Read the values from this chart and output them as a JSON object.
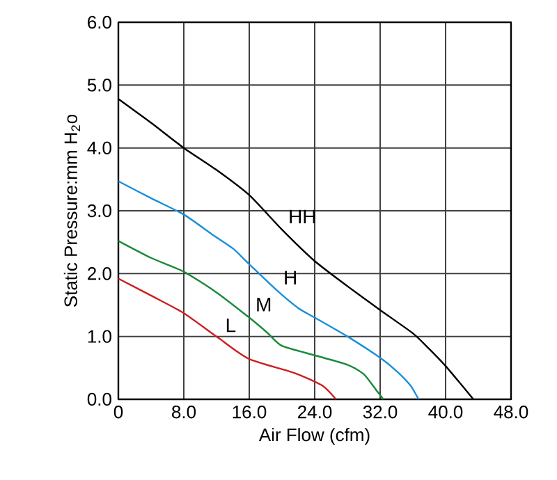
{
  "chart_data": {
    "type": "line",
    "xlabel": "Air Flow (cfm)",
    "ylabel": "Static Pressure:mm H$_{2}$o",
    "xlim": [
      0,
      48
    ],
    "ylim": [
      0,
      6
    ],
    "xticks": [
      {
        "value": 0,
        "label": "0"
      },
      {
        "value": 8,
        "label": "8.0"
      },
      {
        "value": 16,
        "label": "16.0"
      },
      {
        "value": 24,
        "label": "24.0"
      },
      {
        "value": 32,
        "label": "32.0"
      },
      {
        "value": 40,
        "label": "40.0"
      },
      {
        "value": 48,
        "label": "48.0"
      }
    ],
    "yticks": [
      {
        "value": 0,
        "label": "0.0"
      },
      {
        "value": 1,
        "label": "1.0"
      },
      {
        "value": 2,
        "label": "2.0"
      },
      {
        "value": 3,
        "label": "3.0"
      },
      {
        "value": 4,
        "label": "4.0"
      },
      {
        "value": 5,
        "label": "5.0"
      },
      {
        "value": 6,
        "label": "6.0"
      }
    ],
    "grid": true,
    "legend": false,
    "marker": "none",
    "line_style": "solid",
    "series": [
      {
        "name": "HH",
        "color": "#000000",
        "x": [
          0,
          4,
          8,
          12,
          16,
          20,
          24,
          28,
          32,
          36,
          38,
          40,
          42,
          43.4
        ],
        "values": [
          4.78,
          4.4,
          4.0,
          3.65,
          3.25,
          2.7,
          2.2,
          1.8,
          1.42,
          1.05,
          0.8,
          0.53,
          0.22,
          0
        ]
      },
      {
        "name": "H",
        "color": "#1a8fd8",
        "x": [
          0,
          4,
          8,
          11.4,
          14,
          16,
          19.4,
          22,
          24,
          28,
          32,
          34,
          35.7,
          36.7
        ],
        "values": [
          3.47,
          3.2,
          2.94,
          2.63,
          2.4,
          2.15,
          1.73,
          1.45,
          1.3,
          1.0,
          0.66,
          0.45,
          0.22,
          0
        ]
      },
      {
        "name": "M",
        "color": "#1a8a3a",
        "x": [
          0,
          4,
          8,
          12,
          16,
          18.2,
          20,
          24,
          28,
          30,
          31.5,
          32.4
        ],
        "values": [
          2.52,
          2.25,
          2.03,
          1.7,
          1.3,
          1.06,
          0.85,
          0.7,
          0.55,
          0.4,
          0.15,
          0
        ]
      },
      {
        "name": "L",
        "color": "#cc1f1f",
        "x": [
          0,
          4,
          8,
          12.3,
          16,
          21.5,
          24.9,
          26.6
        ],
        "values": [
          1.92,
          1.65,
          1.37,
          0.97,
          0.64,
          0.42,
          0.22,
          0
        ]
      }
    ]
  }
}
